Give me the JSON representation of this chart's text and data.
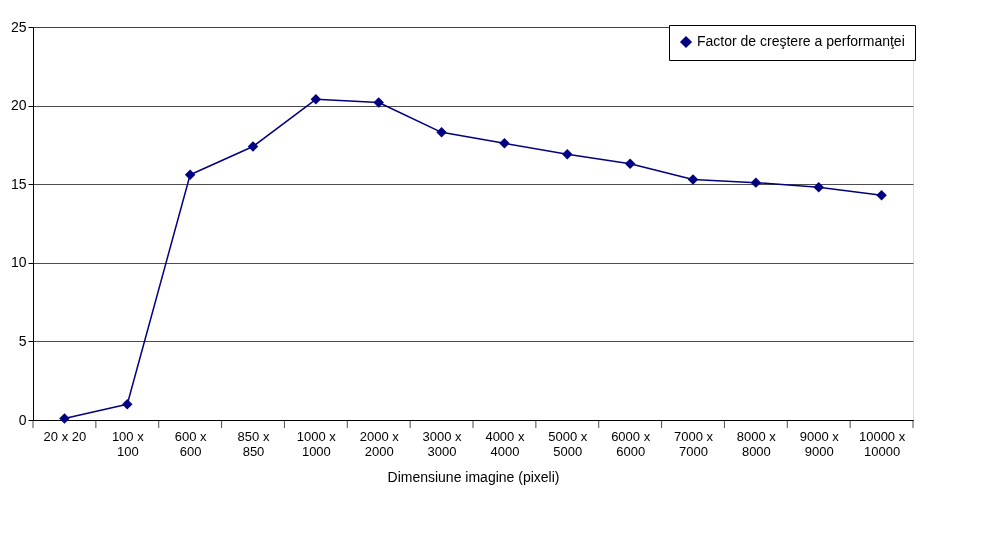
{
  "chart_data": {
    "type": "line",
    "xlabel": "Dimensiune imagine (pixeli)",
    "categories": [
      "20 x 20",
      "100 x 100",
      "600 x 600",
      "850 x 850",
      "1000 x 1000",
      "2000 x 2000",
      "3000 x 3000",
      "4000 x 4000",
      "5000 x 5000",
      "6000 x 6000",
      "7000 x 7000",
      "8000 x 8000",
      "9000 x 9000",
      "10000 x 10000"
    ],
    "series": [
      {
        "name": "Factor de creştere a performanţei",
        "color": "#000080",
        "values": [
          0.1,
          1.0,
          15.6,
          17.4,
          20.4,
          20.2,
          18.3,
          17.6,
          16.9,
          16.3,
          15.3,
          15.1,
          14.8,
          14.3
        ]
      }
    ],
    "ylim": [
      0,
      25
    ],
    "yticks": [
      0,
      5,
      10,
      15,
      20,
      25
    ],
    "grid": "y",
    "legend": "top right",
    "marker": "diamond",
    "line_style": "solid"
  }
}
